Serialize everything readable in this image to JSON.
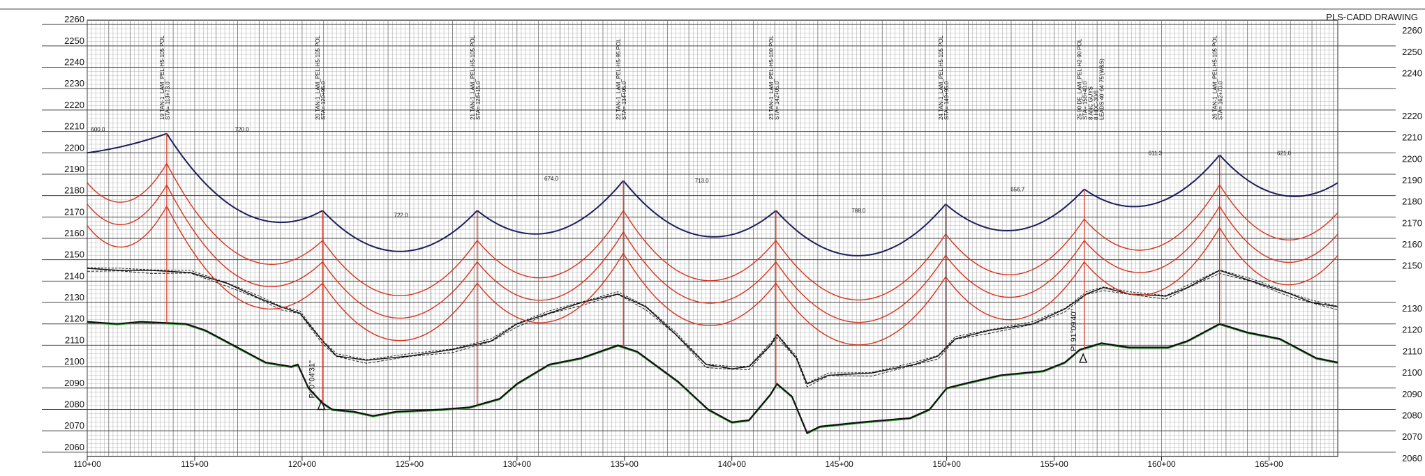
{
  "title": "PLS-CADD DRAWING",
  "colors": {
    "grid": "#9a9a9a",
    "conductor_top": "#1c1f5c",
    "conductor_red": "#d8321c",
    "structure": "#d8321c",
    "ground": "#111111",
    "ground_alt": "#3aa63a"
  },
  "chart_data": {
    "type": "profile",
    "elevation_ticks_left": [
      "2260",
      "2250",
      "2240",
      "2230",
      "2220",
      "2210",
      "2200",
      "2190",
      "2180",
      "2170",
      "2160",
      "2150",
      "2140",
      "2130",
      "2120",
      "2110",
      "2100",
      "2090",
      "2080",
      "2070",
      "2060"
    ],
    "elevation_ticks_right": [
      "2260",
      "2250",
      "2240",
      "2220",
      "2210",
      "2200",
      "2190",
      "2180",
      "2170",
      "2160",
      "2150",
      "2130",
      "2120",
      "2110",
      "2100",
      "2090",
      "2080",
      "2070",
      "2060"
    ],
    "station_ticks": [
      {
        "value": 110,
        "label": "110+00"
      },
      {
        "value": 115,
        "label": "115+00"
      },
      {
        "value": 120,
        "label": "120+00"
      },
      {
        "value": 125,
        "label": "125+00"
      },
      {
        "value": 130,
        "label": "130+00"
      },
      {
        "value": 135,
        "label": "135+00"
      },
      {
        "value": 140,
        "label": "140+00"
      },
      {
        "value": 145,
        "label": "145+00"
      },
      {
        "value": 150,
        "label": "150+00"
      },
      {
        "value": 155,
        "label": "155+00"
      },
      {
        "value": 160,
        "label": "160+00"
      },
      {
        "value": 165,
        "label": "165+00"
      }
    ],
    "x_range": [
      110,
      168.2
    ],
    "y_range": [
      2058,
      2262
    ],
    "structures": [
      {
        "sta": 113.7,
        "top": 2209,
        "label": "19 TAN-1_LAM_PEL-H5-105 POL",
        "station_label": "STA= 113+73.0"
      },
      {
        "sta": 120.95,
        "top": 2173,
        "label": "20 TAN-1_LAM_PEL-H5-105 POL",
        "station_label": "STA= 120+95.0"
      },
      {
        "sta": 128.15,
        "top": 2173,
        "label": "21 TAN-1_LAM_PEL-H5-105 POL",
        "station_label": "STA= 128+15.0"
      },
      {
        "sta": 134.95,
        "top": 2187,
        "label": "22 TAN-1_LAM_PEL-H5-95 POL",
        "station_label": "STA= 134+95.0"
      },
      {
        "sta": 142.05,
        "top": 2173,
        "label": "23 TAN-1_LAM_PEL-H5-100 POL",
        "station_label": "STA= 142+05.0"
      },
      {
        "sta": 149.95,
        "top": 2176,
        "label": "24 TAN-1_LAM_PEL-H5-105 POL",
        "station_label": "STA= 149+95.0"
      },
      {
        "sta": 156.4,
        "top": 2183,
        "label": "25 90 DE_LAM_PEL-H2-90 POL",
        "station_label": "STA= 156+40.0",
        "extra": [
          "8 ANC GUYS",
          "8 HDC-30/8",
          "LEADS 40' 64' 75'(W&S)"
        ]
      },
      {
        "sta": 162.7,
        "top": 2199,
        "label": "26 TAN-1_LAM_PEL-H5-105 POL",
        "station_label": "STA= 162+70.0"
      }
    ],
    "span_labels": [
      {
        "sta": 110.5,
        "elev": 2210,
        "text": "600.0"
      },
      {
        "sta": 117.2,
        "elev": 2210,
        "text": "720.0"
      },
      {
        "sta": 124.6,
        "elev": 2170,
        "text": "722.0"
      },
      {
        "sta": 131.6,
        "elev": 2187,
        "text": "674.0"
      },
      {
        "sta": 138.6,
        "elev": 2186,
        "text": "713.0"
      },
      {
        "sta": 145.9,
        "elev": 2172,
        "text": "788.0"
      },
      {
        "sta": 153.3,
        "elev": 2182,
        "text": "656.7"
      },
      {
        "sta": 159.7,
        "elev": 2199,
        "text": "611.3"
      },
      {
        "sta": 165.7,
        "elev": 2199,
        "text": "621.0"
      }
    ],
    "pi_markers": [
      {
        "sta": 120.9,
        "elev": 2080,
        "text": "PI 0°04'31\""
      },
      {
        "sta": 156.35,
        "elev": 2102,
        "text": "PI 91°09'40\""
      }
    ],
    "top_conductor": [
      [
        110,
        2200
      ],
      [
        113.7,
        2209
      ],
      [
        120.95,
        2173
      ],
      [
        128.15,
        2173
      ],
      [
        134.95,
        2187
      ],
      [
        142.05,
        2173
      ],
      [
        149.95,
        2176
      ],
      [
        156.4,
        2183
      ],
      [
        162.7,
        2199
      ],
      [
        168.2,
        2186
      ]
    ],
    "red_offsets": [
      14,
      24,
      34
    ],
    "ground_upper": [
      [
        110,
        2146
      ],
      [
        111.5,
        2145
      ],
      [
        113,
        2145
      ],
      [
        114.8,
        2144
      ],
      [
        116.5,
        2139
      ],
      [
        118,
        2132
      ],
      [
        119,
        2128
      ],
      [
        119.9,
        2125
      ],
      [
        120.95,
        2112
      ],
      [
        121.6,
        2105
      ],
      [
        123,
        2103
      ],
      [
        125,
        2105
      ],
      [
        127,
        2108
      ],
      [
        128.8,
        2112
      ],
      [
        130,
        2120
      ],
      [
        131.5,
        2125
      ],
      [
        133,
        2130
      ],
      [
        134.7,
        2134
      ],
      [
        136,
        2128
      ],
      [
        137.4,
        2115
      ],
      [
        138.8,
        2101
      ],
      [
        140,
        2099
      ],
      [
        140.8,
        2100
      ],
      [
        141.8,
        2110
      ],
      [
        142.1,
        2115
      ],
      [
        143,
        2104
      ],
      [
        143.5,
        2092
      ],
      [
        144.5,
        2096
      ],
      [
        146.5,
        2097
      ],
      [
        148.5,
        2101
      ],
      [
        149.6,
        2105
      ],
      [
        150.4,
        2113
      ],
      [
        152,
        2117
      ],
      [
        154,
        2120
      ],
      [
        155.5,
        2127
      ],
      [
        156.5,
        2134
      ],
      [
        157.3,
        2137
      ],
      [
        158.5,
        2134
      ],
      [
        160.2,
        2133
      ],
      [
        161.2,
        2137
      ],
      [
        162.7,
        2145
      ],
      [
        164.2,
        2140
      ],
      [
        166,
        2134
      ],
      [
        167,
        2130
      ],
      [
        168.2,
        2128
      ]
    ],
    "ground_lower": [
      [
        110,
        2121
      ],
      [
        111.4,
        2120
      ],
      [
        112.5,
        2121
      ],
      [
        114.6,
        2120
      ],
      [
        115.5,
        2117
      ],
      [
        116.8,
        2110
      ],
      [
        118.3,
        2102
      ],
      [
        119.5,
        2100
      ],
      [
        119.8,
        2101
      ],
      [
        120.3,
        2090
      ],
      [
        120.95,
        2083
      ],
      [
        121.4,
        2080
      ],
      [
        122.4,
        2079
      ],
      [
        123.3,
        2077
      ],
      [
        124.4,
        2079
      ],
      [
        126.5,
        2080
      ],
      [
        127.8,
        2081
      ],
      [
        129.2,
        2085
      ],
      [
        130,
        2092
      ],
      [
        131.5,
        2101
      ],
      [
        133,
        2104
      ],
      [
        134.7,
        2110
      ],
      [
        135.6,
        2107
      ],
      [
        137.5,
        2093
      ],
      [
        138.9,
        2080
      ],
      [
        140,
        2074
      ],
      [
        140.8,
        2075
      ],
      [
        141.8,
        2087
      ],
      [
        142.1,
        2092
      ],
      [
        142.8,
        2086
      ],
      [
        143.5,
        2069
      ],
      [
        144.1,
        2072
      ],
      [
        146,
        2074
      ],
      [
        148.3,
        2076
      ],
      [
        149.2,
        2080
      ],
      [
        150,
        2090
      ],
      [
        150.8,
        2092
      ],
      [
        152.5,
        2096
      ],
      [
        154.5,
        2098
      ],
      [
        155.5,
        2102
      ],
      [
        156.2,
        2108
      ],
      [
        157.2,
        2111
      ],
      [
        158.5,
        2109
      ],
      [
        160.3,
        2109
      ],
      [
        161.2,
        2112
      ],
      [
        162.7,
        2120
      ],
      [
        164,
        2116
      ],
      [
        165.5,
        2113
      ],
      [
        167.2,
        2104
      ],
      [
        168.2,
        2102
      ]
    ]
  }
}
